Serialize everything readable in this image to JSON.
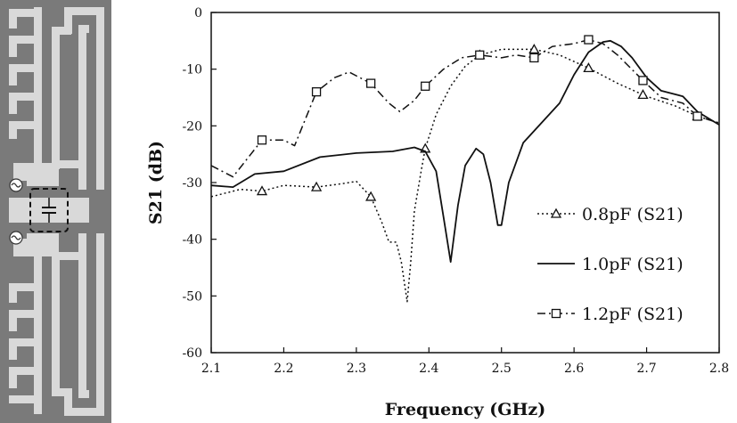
{
  "figure": {
    "left_panel": {
      "description_icon": "resonator-layout-icon"
    },
    "colors": {
      "substrate": "#7a7a7a",
      "metal": "#d9d9d9",
      "ink": "#111111"
    }
  },
  "chart_data": {
    "type": "line",
    "xlabel": "Frequency (GHz)",
    "ylabel": "S21 (dB)",
    "xlim": [
      2.1,
      2.8
    ],
    "ylim": [
      -60,
      0
    ],
    "xticks": [
      2.1,
      2.2,
      2.3,
      2.4,
      2.5,
      2.6,
      2.7,
      2.8
    ],
    "yticks": [
      0,
      -10,
      -20,
      -30,
      -40,
      -50,
      -60
    ],
    "grid": false,
    "legend_position": "bottom-right",
    "series": [
      {
        "name": "0.8pF (S21)",
        "style": "dotted",
        "marker": "triangle",
        "points": [
          [
            2.1,
            -32.5
          ],
          [
            2.14,
            -31.2
          ],
          [
            2.17,
            -31.5
          ],
          [
            2.2,
            -30.5
          ],
          [
            2.245,
            -30.8
          ],
          [
            2.28,
            -30.2
          ],
          [
            2.3,
            -29.8
          ],
          [
            2.32,
            -32.5
          ],
          [
            2.335,
            -37.0
          ],
          [
            2.345,
            -40.5
          ],
          [
            2.355,
            -40.5
          ],
          [
            2.362,
            -44.0
          ],
          [
            2.37,
            -51.0
          ],
          [
            2.375,
            -44.0
          ],
          [
            2.38,
            -35.0
          ],
          [
            2.39,
            -27.5
          ],
          [
            2.395,
            -24.0
          ],
          [
            2.41,
            -18.0
          ],
          [
            2.43,
            -13.0
          ],
          [
            2.45,
            -9.5
          ],
          [
            2.47,
            -7.5
          ],
          [
            2.5,
            -6.5
          ],
          [
            2.545,
            -6.5
          ],
          [
            2.58,
            -7.5
          ],
          [
            2.62,
            -9.8
          ],
          [
            2.66,
            -12.5
          ],
          [
            2.7,
            -14.8
          ],
          [
            2.74,
            -16.5
          ],
          [
            2.77,
            -18.3
          ],
          [
            2.8,
            -19.5
          ]
        ],
        "marker_x": [
          2.17,
          2.245,
          2.32,
          2.395,
          2.47,
          2.545,
          2.62,
          2.695,
          2.77
        ]
      },
      {
        "name": "1.0pF (S21)",
        "style": "solid",
        "marker": "none",
        "points": [
          [
            2.1,
            -30.5
          ],
          [
            2.13,
            -30.8
          ],
          [
            2.16,
            -28.5
          ],
          [
            2.2,
            -28.0
          ],
          [
            2.25,
            -25.5
          ],
          [
            2.3,
            -24.8
          ],
          [
            2.35,
            -24.5
          ],
          [
            2.38,
            -23.8
          ],
          [
            2.395,
            -24.5
          ],
          [
            2.41,
            -28.0
          ],
          [
            2.42,
            -36.0
          ],
          [
            2.43,
            -44.0
          ],
          [
            2.44,
            -34.0
          ],
          [
            2.45,
            -27.0
          ],
          [
            2.465,
            -24.0
          ],
          [
            2.475,
            -25.0
          ],
          [
            2.485,
            -30.0
          ],
          [
            2.495,
            -37.5
          ],
          [
            2.5,
            -37.5
          ],
          [
            2.51,
            -30.0
          ],
          [
            2.53,
            -23.0
          ],
          [
            2.555,
            -19.5
          ],
          [
            2.58,
            -16.0
          ],
          [
            2.6,
            -11.0
          ],
          [
            2.62,
            -7.0
          ],
          [
            2.64,
            -5.2
          ],
          [
            2.65,
            -5.0
          ],
          [
            2.665,
            -6.0
          ],
          [
            2.68,
            -8.0
          ],
          [
            2.7,
            -11.5
          ],
          [
            2.72,
            -13.8
          ],
          [
            2.75,
            -14.8
          ],
          [
            2.77,
            -17.5
          ],
          [
            2.8,
            -19.8
          ]
        ]
      },
      {
        "name": "1.2pF (S21)",
        "style": "dashdot",
        "marker": "square",
        "points": [
          [
            2.1,
            -27.0
          ],
          [
            2.13,
            -29.0
          ],
          [
            2.17,
            -22.5
          ],
          [
            2.2,
            -22.5
          ],
          [
            2.215,
            -23.5
          ],
          [
            2.245,
            -14.0
          ],
          [
            2.27,
            -11.5
          ],
          [
            2.29,
            -10.5
          ],
          [
            2.32,
            -12.5
          ],
          [
            2.345,
            -16.0
          ],
          [
            2.36,
            -17.5
          ],
          [
            2.38,
            -15.5
          ],
          [
            2.395,
            -13.0
          ],
          [
            2.42,
            -10.0
          ],
          [
            2.445,
            -8.0
          ],
          [
            2.47,
            -7.5
          ],
          [
            2.5,
            -8.0
          ],
          [
            2.52,
            -7.5
          ],
          [
            2.545,
            -8.0
          ],
          [
            2.57,
            -6.0
          ],
          [
            2.6,
            -5.5
          ],
          [
            2.62,
            -4.8
          ],
          [
            2.64,
            -5.5
          ],
          [
            2.66,
            -7.5
          ],
          [
            2.695,
            -12.0
          ],
          [
            2.72,
            -15.0
          ],
          [
            2.75,
            -16.0
          ],
          [
            2.77,
            -18.3
          ],
          [
            2.8,
            -19.5
          ]
        ],
        "marker_x": [
          2.17,
          2.245,
          2.32,
          2.395,
          2.47,
          2.545,
          2.62,
          2.695,
          2.77
        ]
      }
    ]
  }
}
